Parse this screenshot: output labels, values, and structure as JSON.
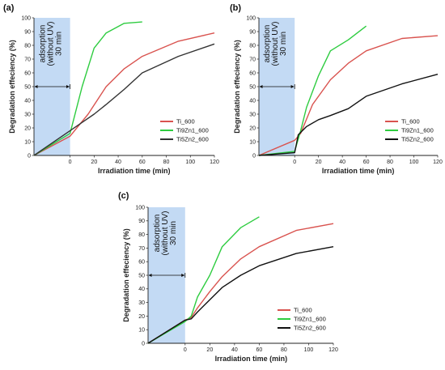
{
  "chart_data": [
    {
      "type": "line",
      "panel_label": "(a)",
      "xlabel": "Irradiation time (min)",
      "ylabel": "Degradation effeciency (%)",
      "xlim": [
        -30,
        120
      ],
      "ylim": [
        0,
        100
      ],
      "xticks": [
        0,
        20,
        40,
        60,
        80,
        100,
        120
      ],
      "yticks": [
        0,
        10,
        20,
        30,
        40,
        50,
        60,
        70,
        80,
        90,
        100
      ],
      "annotation": {
        "lines": [
          "adsorption",
          "(without UV)",
          "30 min"
        ],
        "x_range": [
          -30,
          0
        ],
        "arrow_y": 50
      },
      "legend_position": "right",
      "series": [
        {
          "name": "Ti_600",
          "color": "#d9534f",
          "x": [
            -30,
            0,
            15,
            30,
            45,
            60,
            90,
            120
          ],
          "y": [
            0,
            14,
            30,
            50,
            63,
            72,
            83,
            89
          ]
        },
        {
          "name": "Ti9Zn1_600",
          "color": "#2ecc40",
          "x": [
            -30,
            0,
            10,
            20,
            30,
            45,
            60
          ],
          "y": [
            0,
            16,
            50,
            78,
            89,
            96,
            97
          ]
        },
        {
          "name": "Ti5Zn2_600",
          "color": "#333333",
          "x": [
            -30,
            0,
            10,
            20,
            30,
            45,
            60,
            90,
            120
          ],
          "y": [
            0,
            18,
            24,
            30,
            37,
            48,
            60,
            72,
            81
          ]
        }
      ]
    },
    {
      "type": "line",
      "panel_label": "(b)",
      "xlabel": "Irradiation time (min)",
      "ylabel": "Degradation effeciency (%)",
      "xlim": [
        -30,
        120
      ],
      "ylim": [
        0,
        100
      ],
      "xticks": [
        0,
        20,
        40,
        60,
        80,
        100,
        120
      ],
      "yticks": [
        0,
        10,
        20,
        30,
        40,
        50,
        60,
        70,
        80,
        90,
        100
      ],
      "annotation": {
        "lines": [
          "adsorption",
          "(without UV)",
          "30 min"
        ],
        "x_range": [
          -30,
          0
        ],
        "arrow_y": 50
      },
      "legend_position": "right",
      "series": [
        {
          "name": "Ti_600",
          "color": "#d9534f",
          "x": [
            -30,
            0,
            5,
            15,
            30,
            45,
            60,
            90,
            120
          ],
          "y": [
            0,
            11,
            16,
            37,
            55,
            67,
            76,
            85,
            87
          ]
        },
        {
          "name": "Ti9Zn1_600",
          "color": "#2ecc40",
          "x": [
            -30,
            0,
            5,
            10,
            20,
            30,
            45,
            60
          ],
          "y": [
            0,
            3,
            18,
            35,
            58,
            76,
            84,
            94
          ]
        },
        {
          "name": "Ti5Zn2_600",
          "color": "#111111",
          "x": [
            -30,
            0,
            3,
            10,
            20,
            30,
            45,
            60,
            90,
            120
          ],
          "y": [
            0,
            2,
            15,
            21,
            26,
            29,
            34,
            43,
            52,
            59
          ]
        }
      ]
    },
    {
      "type": "line",
      "panel_label": "(c)",
      "xlabel": "Irradiation time (min)",
      "ylabel": "Degradation effeciency (%)",
      "xlim": [
        -30,
        120
      ],
      "ylim": [
        0,
        100
      ],
      "xticks": [
        0,
        20,
        40,
        60,
        80,
        100,
        120
      ],
      "yticks": [
        0,
        10,
        20,
        30,
        40,
        50,
        60,
        70,
        80,
        90,
        100
      ],
      "annotation": {
        "lines": [
          "adsorption",
          "(without UV)",
          "30 min"
        ],
        "x_range": [
          -30,
          0
        ],
        "arrow_y": 50
      },
      "legend_position": "right",
      "series": [
        {
          "name": "Ti_600",
          "color": "#d9534f",
          "x": [
            -30,
            0,
            5,
            10,
            20,
            30,
            45,
            60,
            90,
            120
          ],
          "y": [
            0,
            17,
            19,
            26,
            38,
            49,
            62,
            71,
            83,
            88
          ]
        },
        {
          "name": "Ti9Zn1_600",
          "color": "#2ecc40",
          "x": [
            -30,
            0,
            5,
            10,
            20,
            30,
            45,
            60
          ],
          "y": [
            0,
            16,
            20,
            34,
            50,
            71,
            85,
            93
          ]
        },
        {
          "name": "Ti5Zn2_600",
          "color": "#111111",
          "x": [
            -30,
            0,
            5,
            10,
            20,
            30,
            45,
            60,
            90,
            120
          ],
          "y": [
            0,
            17,
            18,
            23,
            32,
            41,
            50,
            57,
            66,
            71
          ]
        }
      ]
    }
  ]
}
